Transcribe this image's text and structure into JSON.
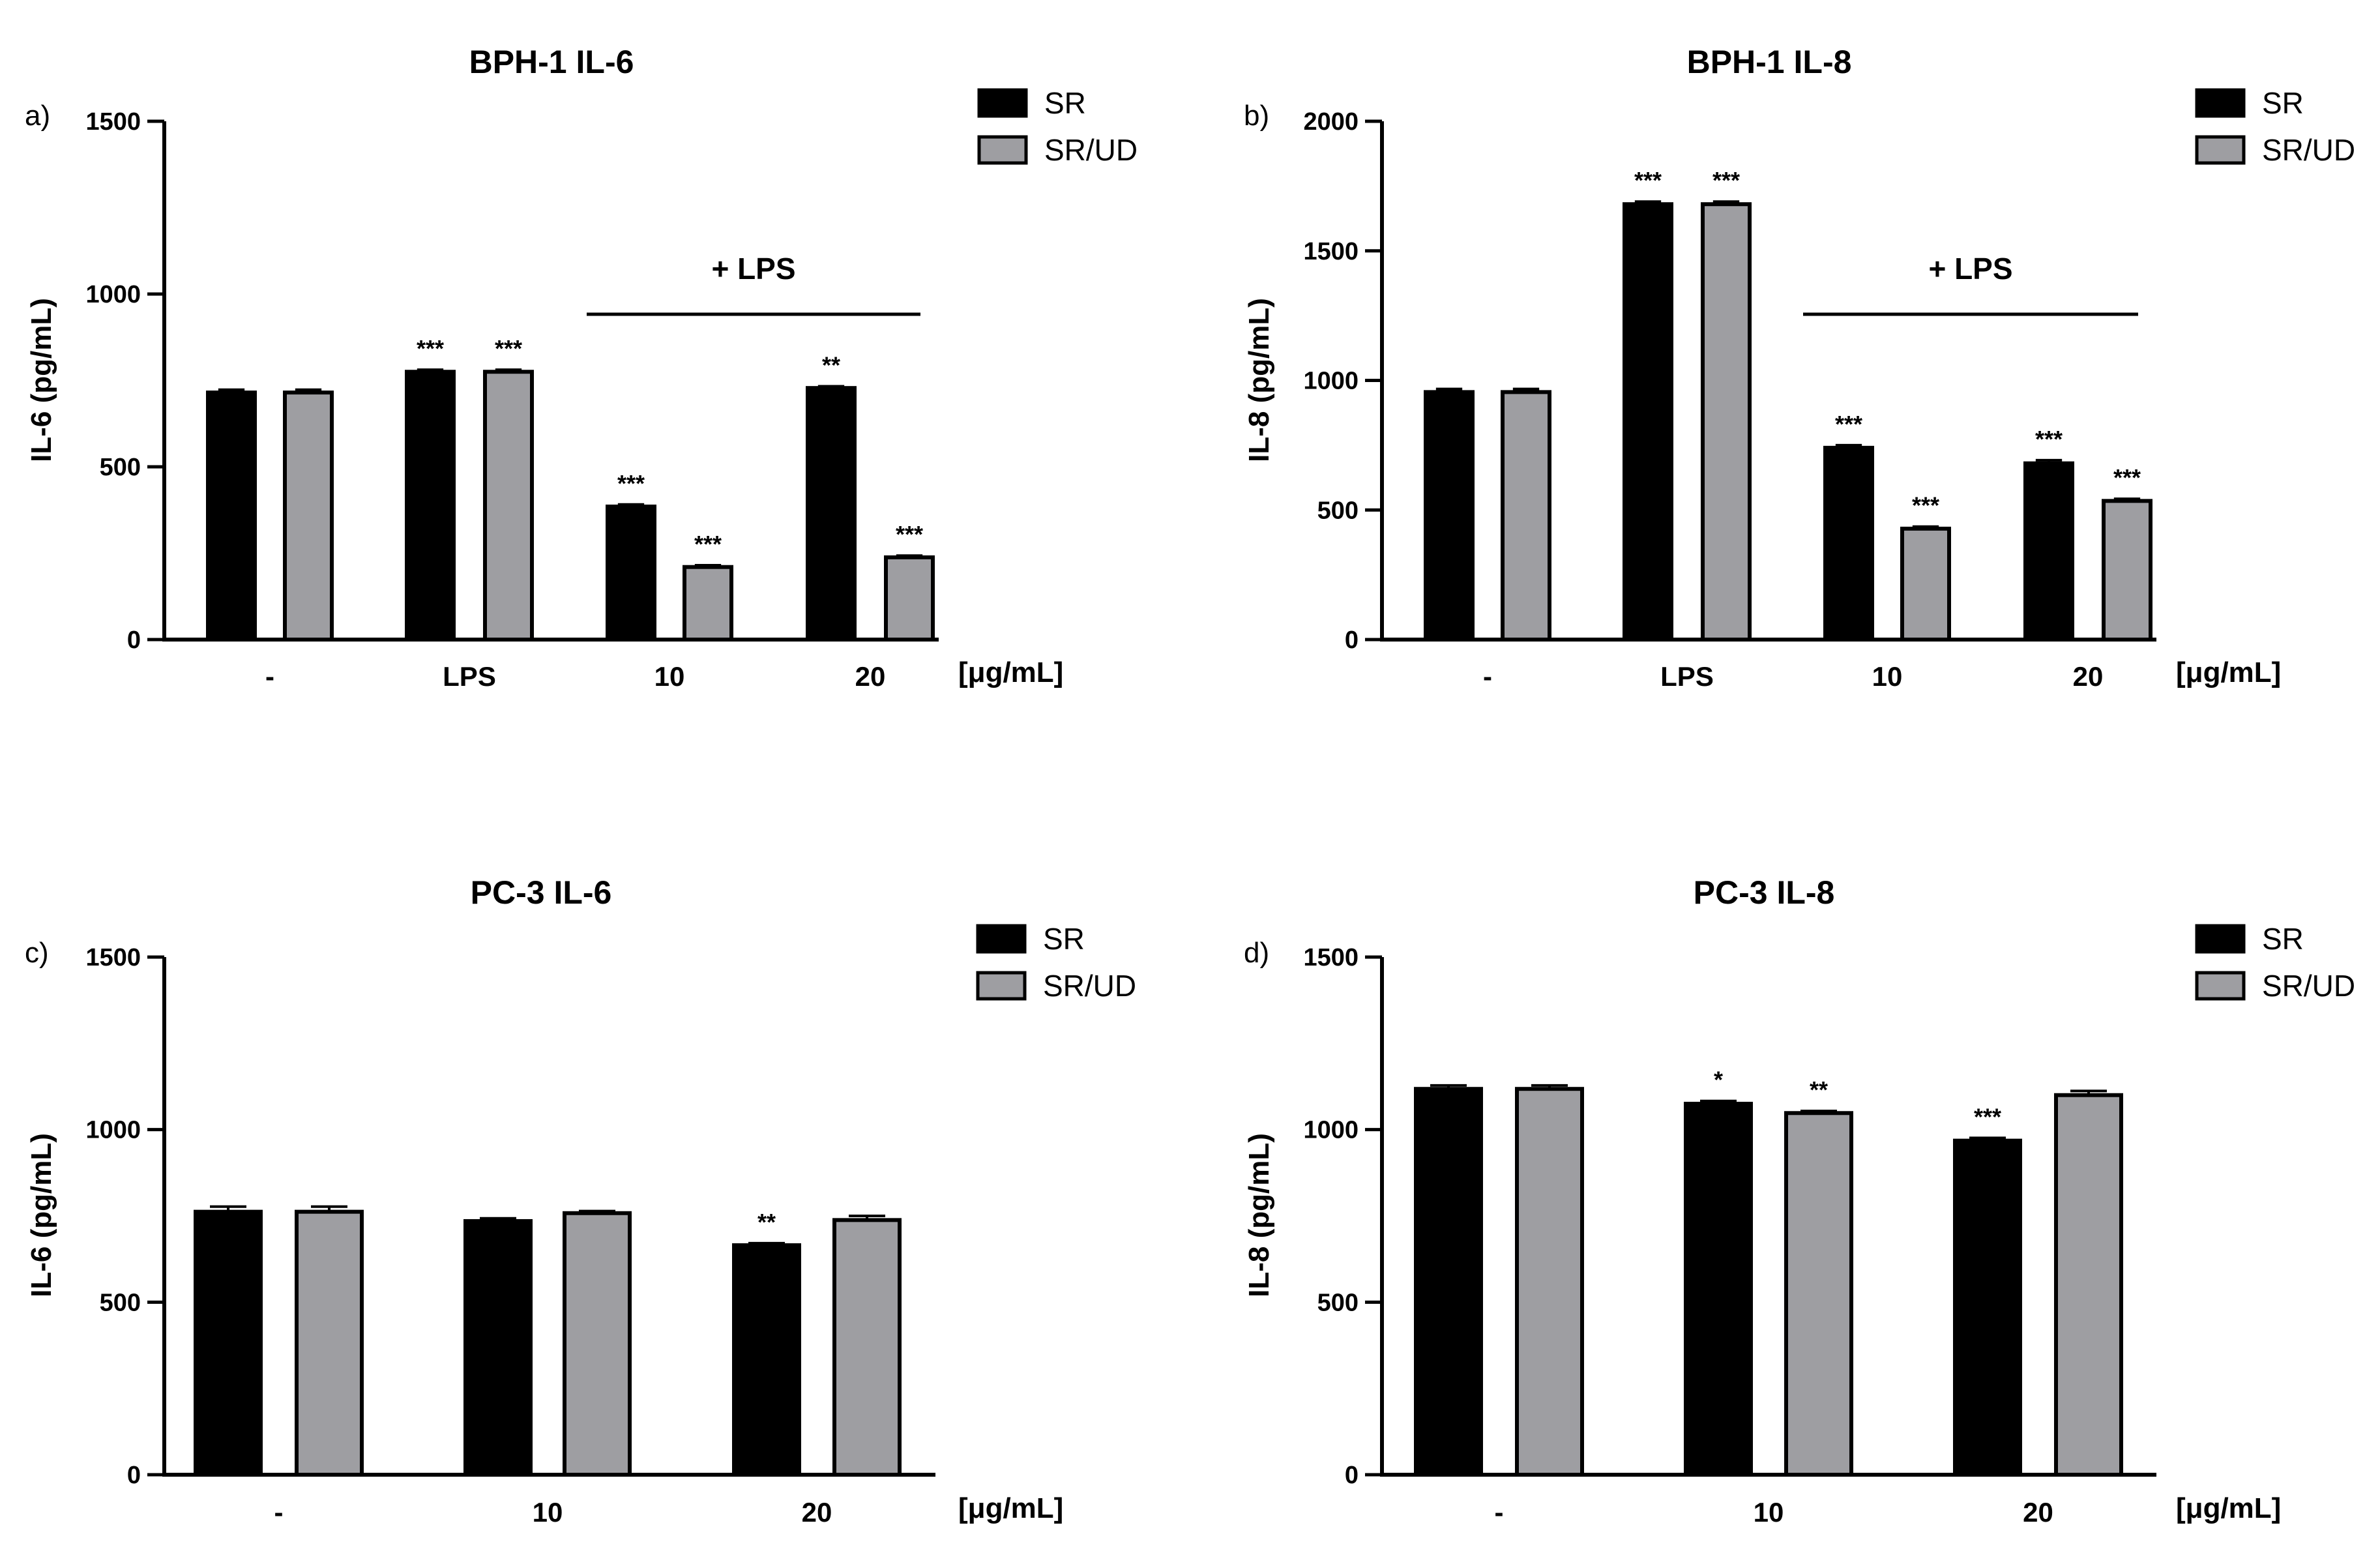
{
  "colors": {
    "sr": "#000000",
    "srud": "#9e9ea2",
    "axis": "#000000"
  },
  "chart_data": [
    {
      "type": "bar",
      "panel": "a)",
      "title": "BPH-1 IL-6",
      "ylabel": "IL-6 (pg/mL)",
      "xunit": "[μg/mL]",
      "ylim": [
        0,
        1500
      ],
      "yticks": [
        0,
        500,
        1000,
        1500
      ],
      "categories": [
        "-",
        "LPS",
        "10",
        "20"
      ],
      "bracket": {
        "label": "+ LPS",
        "from_category": 2,
        "to_category": 3
      },
      "series": [
        {
          "name": "SR",
          "values": [
            715,
            775,
            385,
            728
          ],
          "errors": [
            8,
            6,
            6,
            5
          ],
          "sig": [
            "",
            "***",
            "***",
            "**"
          ]
        },
        {
          "name": "SR/UD",
          "values": [
            715,
            775,
            210,
            238
          ],
          "errors": [
            8,
            6,
            5,
            5
          ],
          "sig": [
            "",
            "***",
            "***",
            "***"
          ]
        }
      ]
    },
    {
      "type": "bar",
      "panel": "b)",
      "title": "BPH-1 IL-8",
      "ylabel": "IL-8 (pg/mL)",
      "xunit": "[μg/mL]",
      "ylim": [
        0,
        2000
      ],
      "yticks": [
        0,
        500,
        1000,
        1500,
        2000
      ],
      "categories": [
        "-",
        "LPS",
        "10",
        "20"
      ],
      "bracket": {
        "label": "+ LPS",
        "from_category": 2,
        "to_category": 3
      },
      "series": [
        {
          "name": "SR",
          "values": [
            955,
            1680,
            740,
            680
          ],
          "errors": [
            12,
            10,
            10,
            12
          ],
          "sig": [
            "",
            "***",
            "***",
            "***"
          ]
        },
        {
          "name": "SR/UD",
          "values": [
            955,
            1680,
            428,
            535
          ],
          "errors": [
            12,
            10,
            8,
            8
          ],
          "sig": [
            "",
            "***",
            "***",
            "***"
          ]
        }
      ]
    },
    {
      "type": "bar",
      "panel": "c)",
      "title": "PC-3 IL-6",
      "ylabel": "IL-6 (pg/mL)",
      "xunit": "[μg/mL]",
      "ylim": [
        0,
        1500
      ],
      "yticks": [
        0,
        500,
        1000,
        1500
      ],
      "categories": [
        "-",
        "10",
        "20"
      ],
      "series": [
        {
          "name": "SR",
          "values": [
            762,
            735,
            665
          ],
          "errors": [
            15,
            8,
            6
          ],
          "sig": [
            "",
            "",
            "**"
          ]
        },
        {
          "name": "SR/UD",
          "values": [
            762,
            758,
            738
          ],
          "errors": [
            15,
            6,
            12
          ],
          "sig": [
            "",
            "",
            ""
          ]
        }
      ]
    },
    {
      "type": "bar",
      "panel": "d)",
      "title": "PC-3 IL-8",
      "ylabel": "IL-8 (pg/mL)",
      "xunit": "[μg/mL]",
      "ylim": [
        0,
        1500
      ],
      "yticks": [
        0,
        500,
        1000,
        1500
      ],
      "categories": [
        "-",
        "10",
        "20"
      ],
      "series": [
        {
          "name": "SR",
          "values": [
            1118,
            1075,
            968
          ],
          "errors": [
            10,
            8,
            8
          ],
          "sig": [
            "",
            "*",
            "***"
          ]
        },
        {
          "name": "SR/UD",
          "values": [
            1118,
            1048,
            1100
          ],
          "errors": [
            10,
            6,
            12
          ],
          "sig": [
            "",
            "**",
            ""
          ]
        }
      ]
    }
  ]
}
